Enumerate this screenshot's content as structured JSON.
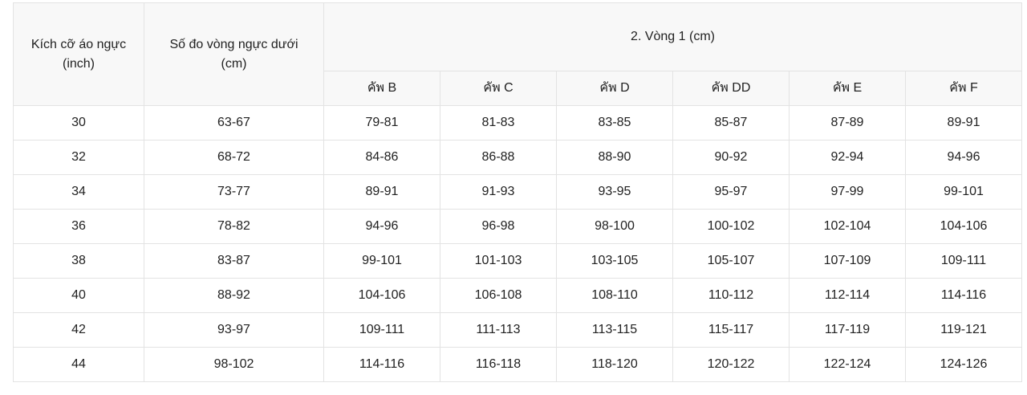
{
  "colors": {
    "page_background": "#ffffff",
    "header_background": "#f8f8f8",
    "border": "#e3e3e3",
    "text": "#212121"
  },
  "table": {
    "col1_header": {
      "label": "Kích cỡ áo ngực",
      "unit": "(inch)"
    },
    "col2_header": {
      "label": "Số đo vòng ngực dưới",
      "unit": "(cm)"
    },
    "span_header": "2. Vòng 1 (cm)",
    "cup_headers": [
      "คัพ B",
      "คัพ C",
      "คัพ D",
      "คัพ DD",
      "คัพ E",
      "คัพ F"
    ],
    "rows": [
      {
        "size": "30",
        "underbust": "63-67",
        "cups": [
          "79-81",
          "81-83",
          "83-85",
          "85-87",
          "87-89",
          "89-91"
        ]
      },
      {
        "size": "32",
        "underbust": "68-72",
        "cups": [
          "84-86",
          "86-88",
          "88-90",
          "90-92",
          "92-94",
          "94-96"
        ]
      },
      {
        "size": "34",
        "underbust": "73-77",
        "cups": [
          "89-91",
          "91-93",
          "93-95",
          "95-97",
          "97-99",
          "99-101"
        ]
      },
      {
        "size": "36",
        "underbust": "78-82",
        "cups": [
          "94-96",
          "96-98",
          "98-100",
          "100-102",
          "102-104",
          "104-106"
        ]
      },
      {
        "size": "38",
        "underbust": "83-87",
        "cups": [
          "99-101",
          "101-103",
          "103-105",
          "105-107",
          "107-109",
          "109-111"
        ]
      },
      {
        "size": "40",
        "underbust": "88-92",
        "cups": [
          "104-106",
          "106-108",
          "108-110",
          "110-112",
          "112-114",
          "114-116"
        ]
      },
      {
        "size": "42",
        "underbust": "93-97",
        "cups": [
          "109-111",
          "111-113",
          "113-115",
          "115-117",
          "117-119",
          "119-121"
        ]
      },
      {
        "size": "44",
        "underbust": "98-102",
        "cups": [
          "114-116",
          "116-118",
          "118-120",
          "120-122",
          "122-124",
          "124-126"
        ]
      }
    ]
  }
}
